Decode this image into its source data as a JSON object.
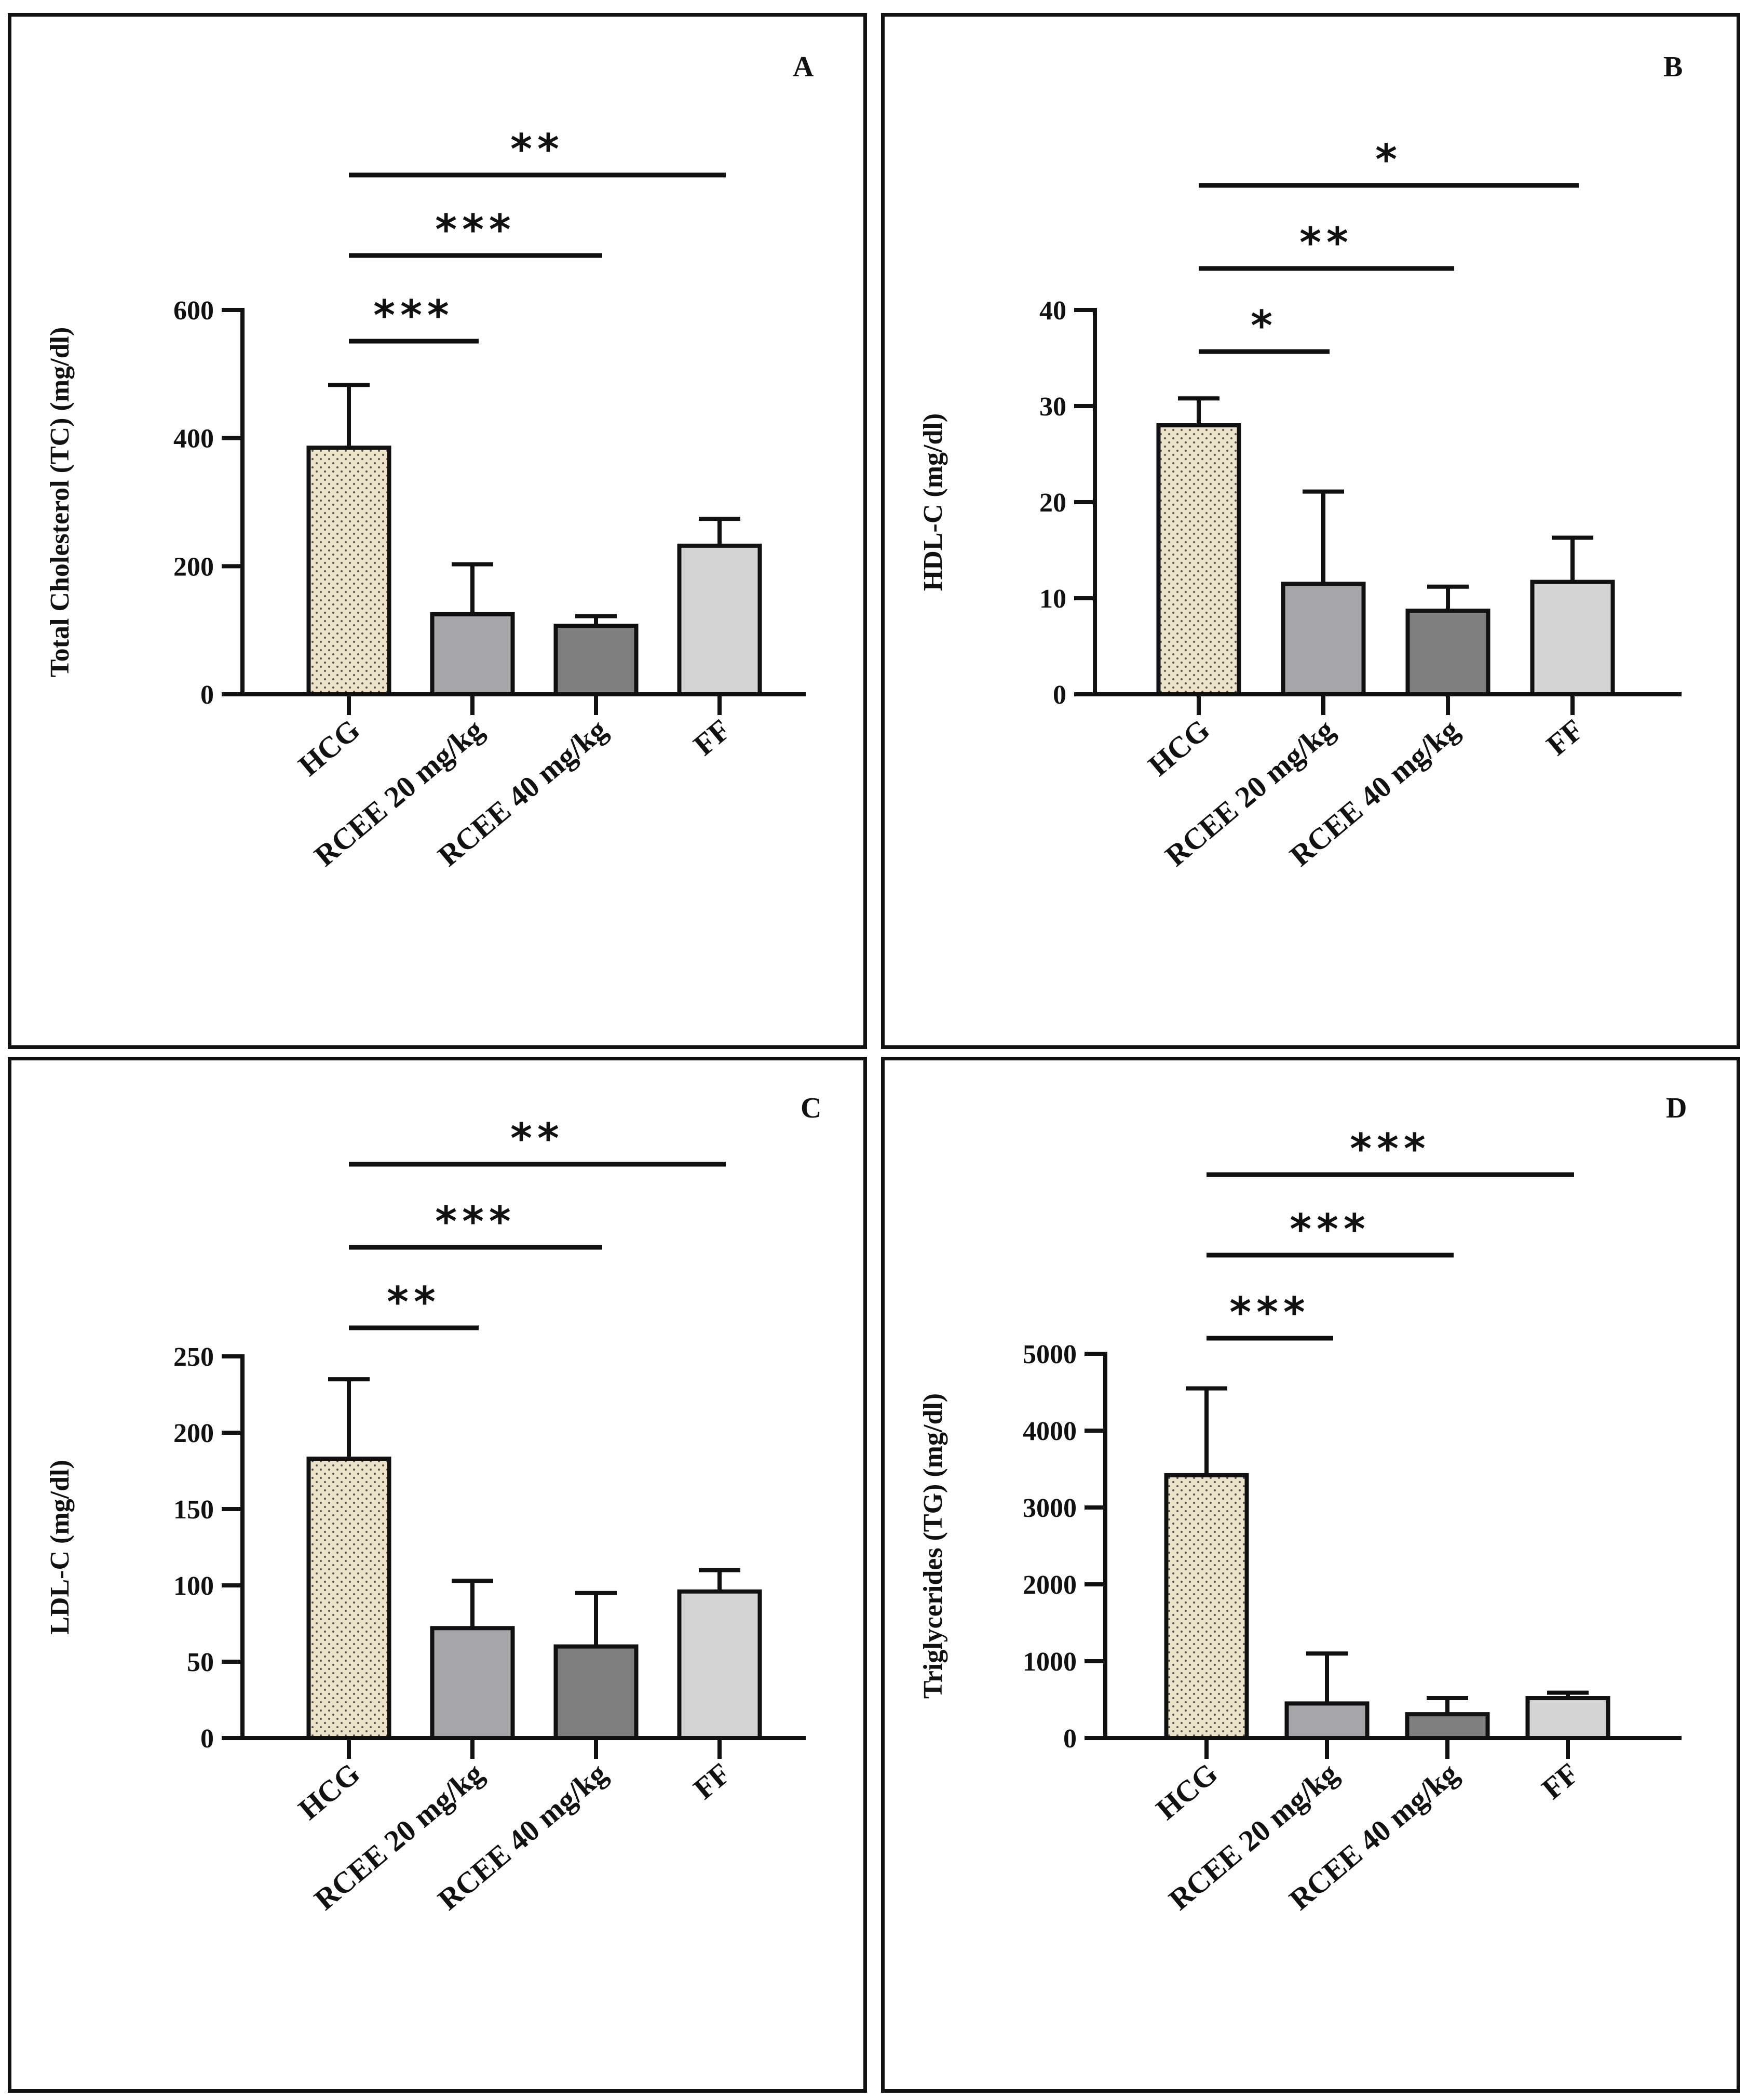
{
  "colors": {
    "axis": "#111111",
    "hcg_fill": "#ece3c8",
    "hcg_dot": "#555555",
    "rcee20": "#a6a6a8",
    "rcee40": "#7f7f80",
    "ff": "#d4d4d4"
  },
  "chart_data": [
    {
      "type": "bar",
      "panel_label": "A",
      "ylabel": "Total Cholesterol (TC) (mg/dl)",
      "categories": [
        "HCG",
        "RCEE 20 mg/kg",
        "RCEE 40 mg/kg",
        "FF"
      ],
      "values": [
        385,
        125,
        107,
        232
      ],
      "errors": [
        98,
        78,
        15,
        42
      ],
      "ylim": [
        0,
        600
      ],
      "yticks": [
        0,
        200,
        400,
        600
      ],
      "ytick_labels": [
        "0",
        "200",
        "400",
        "600"
      ],
      "significance": [
        {
          "from": 0,
          "to": 1,
          "label": "***"
        },
        {
          "from": 0,
          "to": 2,
          "label": "***"
        },
        {
          "from": 0,
          "to": 3,
          "label": "**"
        }
      ]
    },
    {
      "type": "bar",
      "panel_label": "B",
      "ylabel": "HDL-C (mg/dl)",
      "categories": [
        "HCG",
        "RCEE 20 mg/kg",
        "RCEE 40 mg/kg",
        "FF"
      ],
      "values": [
        28,
        11.5,
        8.7,
        11.7
      ],
      "errors": [
        2.8,
        9.6,
        2.5,
        4.6
      ],
      "ylim": [
        0,
        40
      ],
      "yticks": [
        0,
        10,
        20,
        30,
        40
      ],
      "ytick_labels": [
        "0",
        "10",
        "20",
        "30",
        "40"
      ],
      "significance": [
        {
          "from": 0,
          "to": 1,
          "label": "*"
        },
        {
          "from": 0,
          "to": 2,
          "label": "**"
        },
        {
          "from": 0,
          "to": 3,
          "label": "*"
        }
      ]
    },
    {
      "type": "bar",
      "panel_label": "C",
      "ylabel": "LDL-C (mg/dl)",
      "categories": [
        "HCG",
        "RCEE 20 mg/kg",
        "RCEE 40 mg/kg",
        "FF"
      ],
      "values": [
        183,
        72,
        60,
        96
      ],
      "errors": [
        52,
        31,
        35,
        14
      ],
      "ylim": [
        0,
        250
      ],
      "yticks": [
        0,
        50,
        100,
        150,
        200,
        250
      ],
      "ytick_labels": [
        "0",
        "50",
        "100",
        "150",
        "200",
        "250"
      ],
      "significance": [
        {
          "from": 0,
          "to": 1,
          "label": "**"
        },
        {
          "from": 0,
          "to": 2,
          "label": "***"
        },
        {
          "from": 0,
          "to": 3,
          "label": "**"
        }
      ]
    },
    {
      "type": "bar",
      "panel_label": "D",
      "ylabel": "Triglycerides (TG) (mg/dl)",
      "categories": [
        "HCG",
        "RCEE 20 mg/kg",
        "RCEE 40 mg/kg",
        "FF"
      ],
      "values": [
        3420,
        450,
        310,
        520
      ],
      "errors": [
        1130,
        650,
        210,
        70
      ],
      "ylim": [
        0,
        5000
      ],
      "yticks": [
        0,
        1000,
        2000,
        3000,
        4000,
        5000
      ],
      "ytick_labels": [
        "0",
        "1000",
        "2000",
        "3000",
        "4000",
        "5000"
      ],
      "significance": [
        {
          "from": 0,
          "to": 1,
          "label": "***"
        },
        {
          "from": 0,
          "to": 2,
          "label": "***"
        },
        {
          "from": 0,
          "to": 3,
          "label": "***"
        }
      ]
    }
  ]
}
